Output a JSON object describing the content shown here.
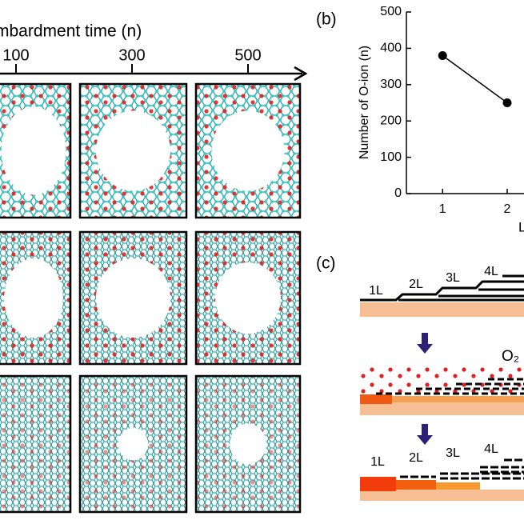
{
  "panel_a": {
    "axis_title": "mbardment time (n)",
    "ticks": [
      "100",
      "300",
      "500"
    ]
  },
  "chart_data": {
    "type": "line",
    "panel_label": "(b)",
    "y_label": "Number of O-ion (n)",
    "x_label": "L",
    "x": [
      1,
      2
    ],
    "values": [
      380,
      250
    ],
    "color": "#000000",
    "xlim": [
      0.44,
      2.26
    ],
    "xticks": [
      1,
      2
    ],
    "ylim": [
      0,
      500
    ],
    "yticks": [
      0,
      100,
      200,
      300,
      400,
      500
    ]
  },
  "panel_c": {
    "panel_label": "(c)",
    "top_labels": [
      "1L",
      "2L",
      "3L",
      "4L"
    ],
    "gas": "O₂",
    "bottom_labels": [
      "1L",
      "2L",
      "3L",
      "4L"
    ]
  }
}
